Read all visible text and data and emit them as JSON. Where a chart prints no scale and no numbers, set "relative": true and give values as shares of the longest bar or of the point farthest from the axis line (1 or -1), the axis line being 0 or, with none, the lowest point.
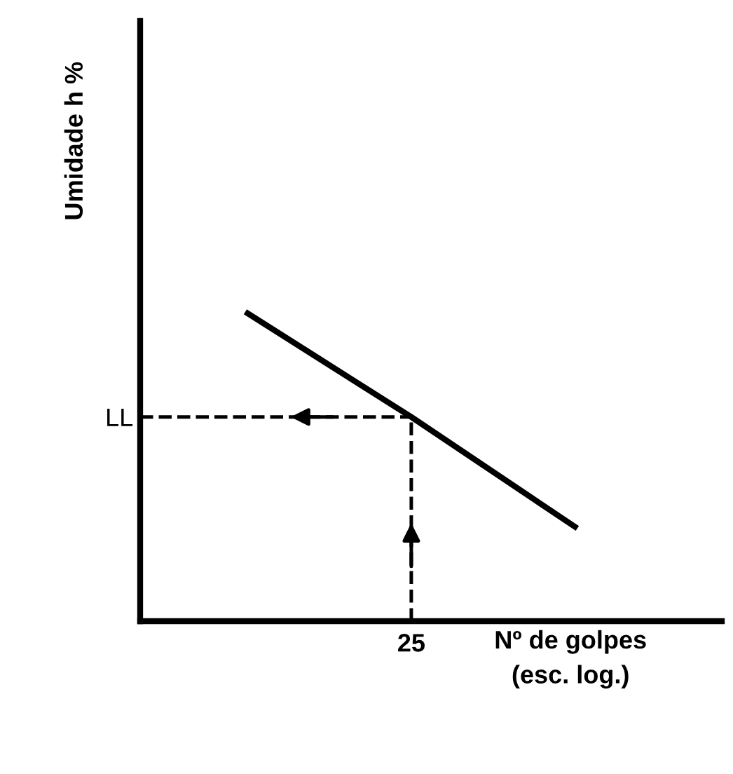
{
  "chart_data": {
    "type": "line",
    "relative": true,
    "categories": [
      null,
      null,
      null
    ],
    "values": [
      1,
      0.66,
      0.3
    ],
    "color": "#000000",
    "xlabel": "Nº de golpes\n(esc. log.)",
    "ylabel": "Umidade h %",
    "ref_lines": [
      {
        "axis": "y",
        "value": 0.66,
        "label": "LL",
        "line_style": "dashed",
        "color": "#000000"
      },
      {
        "axis": "x",
        "value": "25",
        "line_style": "dashed",
        "color": "#000000"
      }
    ],
    "grid": false,
    "legend": false,
    "marker": "none",
    "line_style": "solid"
  }
}
